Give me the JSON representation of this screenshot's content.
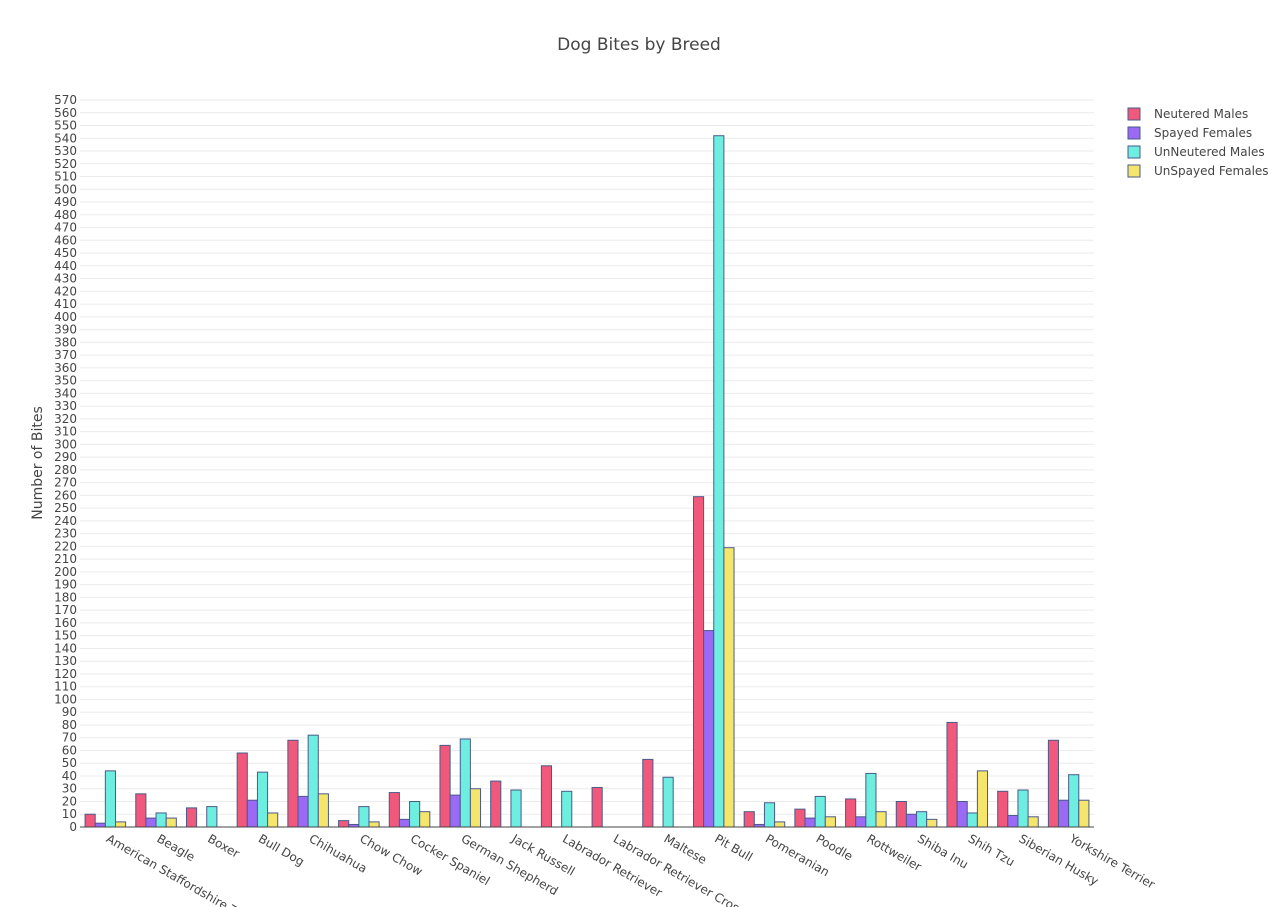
{
  "chart_data": {
    "type": "bar",
    "title": "Dog Bites by Breed",
    "xlabel": "",
    "ylabel": "Number of Bites",
    "ylim": [
      0,
      570
    ],
    "ytick_step": 10,
    "grid": true,
    "legend_position": "top-right",
    "categories": [
      "American Staffordshire Terrier",
      "Beagle",
      "Boxer",
      "Bull Dog",
      "Chihuahua",
      "Chow Chow",
      "Cocker Spaniel",
      "German Shepherd",
      "Jack Russell",
      "Labrador Retriever",
      "Labrador Retriever Cross",
      "Maltese",
      "Pit Bull",
      "Pomeranian",
      "Poodle",
      "Rottweiler",
      "Shiba Inu",
      "Shih Tzu",
      "Siberian Husky",
      "Yorkshire Terrier"
    ],
    "series": [
      {
        "name": "Neutered Males",
        "color": "#f0587c",
        "values": [
          10,
          26,
          15,
          58,
          68,
          5,
          27,
          64,
          36,
          48,
          31,
          53,
          259,
          12,
          14,
          22,
          20,
          82,
          28,
          68
        ]
      },
      {
        "name": "Spayed Females",
        "color": "#9b6af5",
        "values": [
          3,
          7,
          0,
          21,
          24,
          2,
          6,
          25,
          0,
          0,
          0,
          0,
          154,
          2,
          7,
          8,
          10,
          20,
          9,
          21
        ]
      },
      {
        "name": "UnNeutered Males",
        "color": "#6deee0",
        "values": [
          44,
          11,
          16,
          43,
          72,
          16,
          20,
          69,
          29,
          28,
          0,
          39,
          542,
          19,
          24,
          42,
          12,
          11,
          29,
          41
        ]
      },
      {
        "name": "UnSpayed Females",
        "color": "#f5e56b",
        "values": [
          4,
          7,
          0,
          11,
          26,
          4,
          12,
          30,
          0,
          0,
          0,
          0,
          219,
          4,
          8,
          12,
          6,
          44,
          8,
          21
        ]
      }
    ]
  }
}
